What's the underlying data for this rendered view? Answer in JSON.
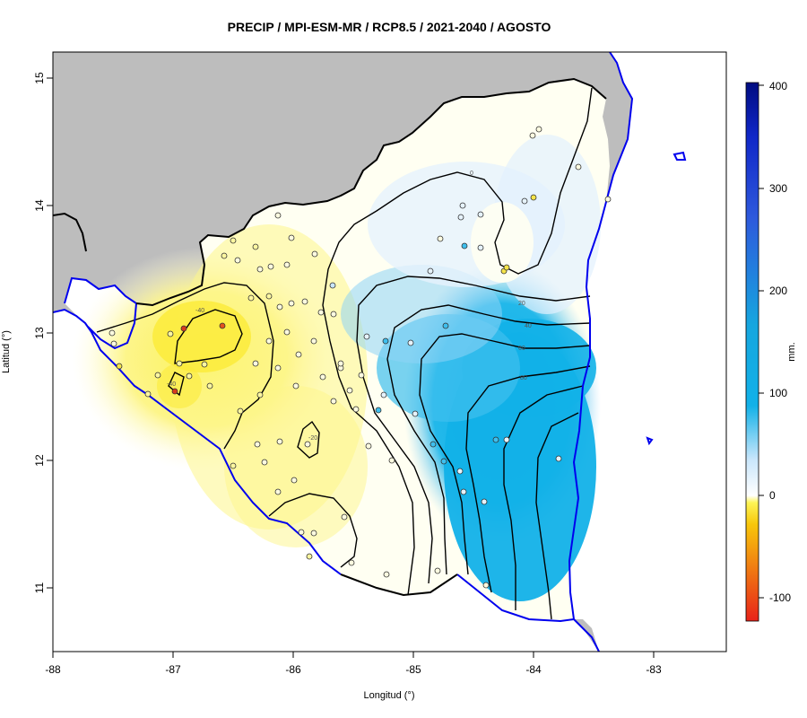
{
  "title": "PRECIP / MPI-ESM-MR / RCP8.5 / 2021-2040 / AGOSTO",
  "x_axis": {
    "label": "Longitud (°)",
    "ticks": [
      "-88",
      "-87",
      "-86",
      "-85",
      "-84",
      "-83"
    ]
  },
  "y_axis": {
    "label": "Latitud (°)",
    "ticks": [
      "15",
      "14",
      "13",
      "12",
      "11"
    ]
  },
  "colorbar": {
    "unit": "mm.",
    "ticks": [
      "400",
      "300",
      "200",
      "100",
      "0",
      "-100"
    ],
    "range": [
      -122,
      402
    ],
    "colors": [
      "#e8231a",
      "#f07d12",
      "#f8c70b",
      "#fdf556",
      "#ffffe0",
      "#ffffff",
      "#c9e6fb",
      "#12b1e8",
      "#2e59dc",
      "#000c80"
    ]
  },
  "contour_labels": [
    "0",
    "20",
    "40",
    "60",
    "80",
    "-40",
    "-40",
    "-20"
  ],
  "colors": {
    "land_background": "#bdbdbd",
    "coast": "#0000ee",
    "border": "#000000",
    "contour": "#000000"
  }
}
